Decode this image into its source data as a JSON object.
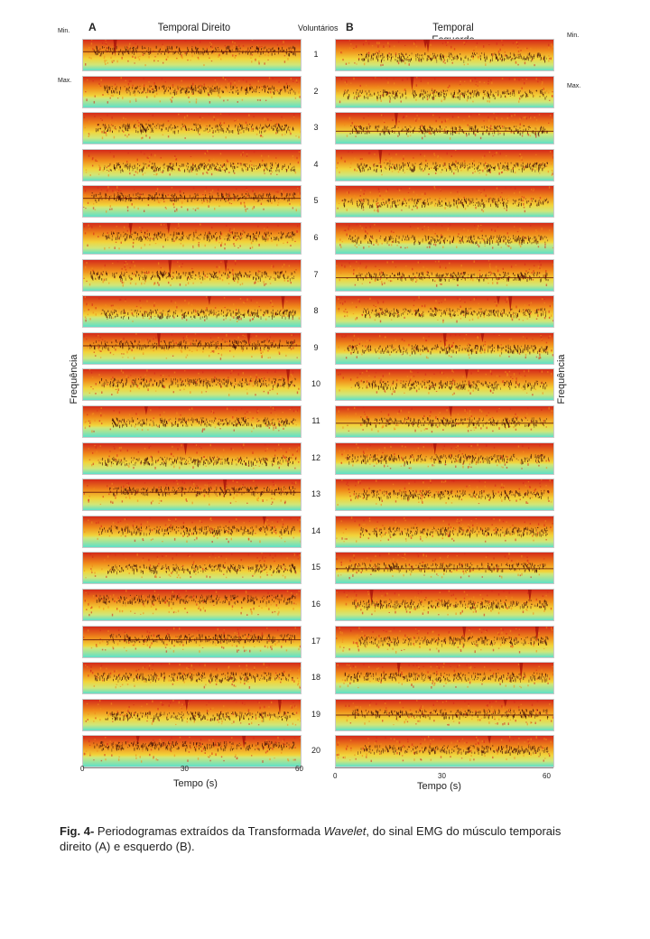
{
  "panels": {
    "A": {
      "letter": "A",
      "title": "Temporal Direito"
    },
    "B": {
      "letter": "B",
      "title": "Temporal Esquerdo"
    }
  },
  "volunteers_header": "Voluntários",
  "volunteers": [
    "1",
    "2",
    "3",
    "4",
    "5",
    "6",
    "7",
    "8",
    "9",
    "10",
    "11",
    "12",
    "13",
    "14",
    "15",
    "16",
    "17",
    "18",
    "19",
    "20"
  ],
  "scale": {
    "min": "Min.",
    "max": "Max."
  },
  "y_label": "Frequência",
  "x_axis": {
    "ticks": [
      "0",
      "30",
      "60"
    ],
    "label": "Tempo (s)"
  },
  "caption": {
    "label": "Fig. 4-",
    "text_before": " Periodogramas extraídos da Transformada ",
    "italic": "Wavelet",
    "text_after": ", do sinal EMG do músculo temporais direito (A) e esquerdo (B)."
  },
  "colors": {
    "red": "#d42a1a",
    "orange": "#f08a1a",
    "yellow": "#f2d43a",
    "cyan": "#5fe0c8",
    "dark": "#3a0c08"
  }
}
